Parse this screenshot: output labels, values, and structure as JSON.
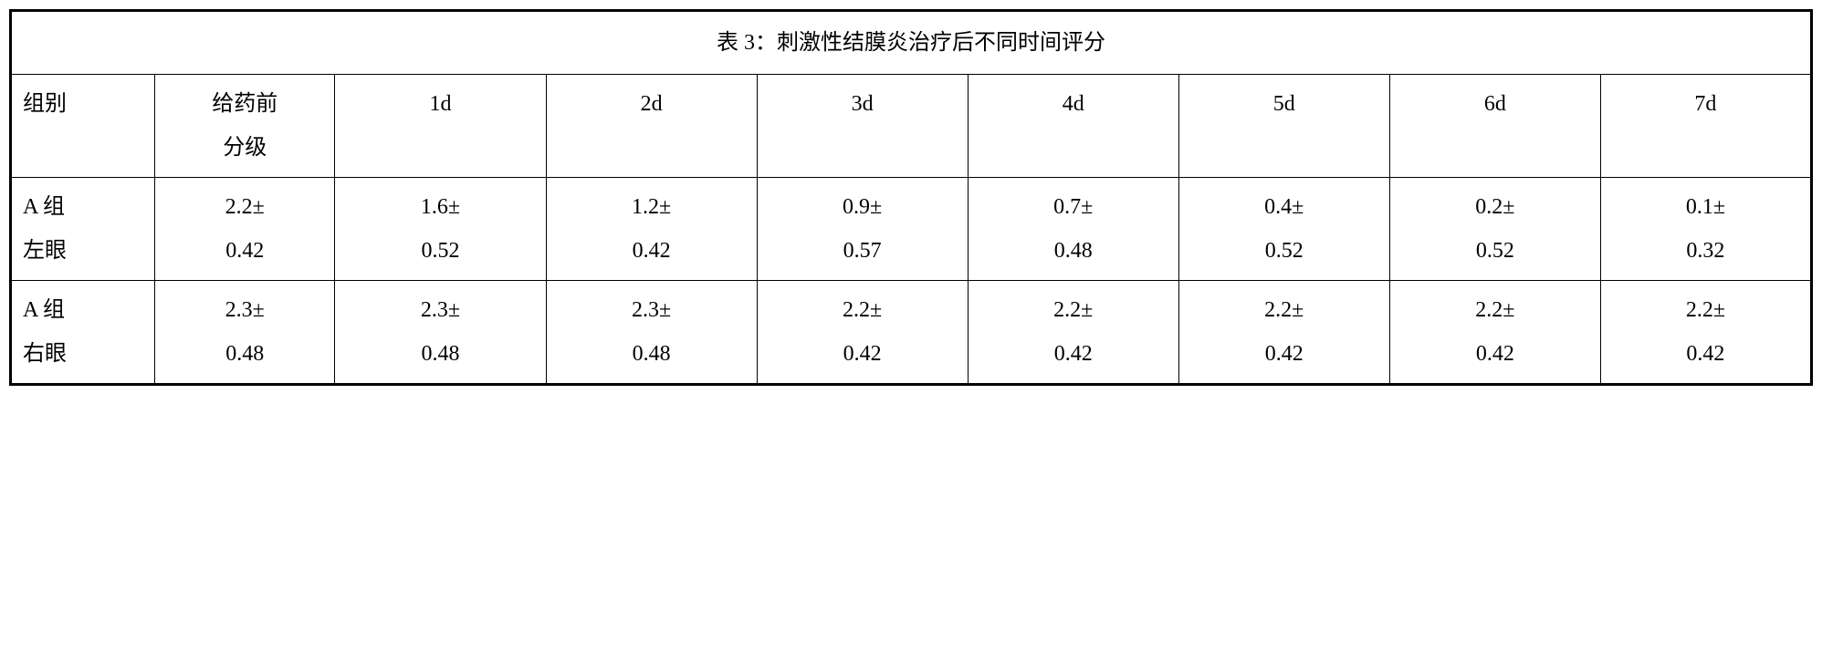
{
  "table": {
    "title": "表 3：刺激性结膜炎治疗后不同时间评分",
    "columns": {
      "group_header": "组别",
      "pre_dose_line1": "给药前",
      "pre_dose_line2": "分级",
      "d1": "1d",
      "d2": "2d",
      "d3": "3d",
      "d4": "4d",
      "d5": "5d",
      "d6": "6d",
      "d7": "7d"
    },
    "rows": [
      {
        "group_l1": "A 组",
        "group_l2": "左眼",
        "pre_l1": "2.2±",
        "pre_l2": "0.42",
        "d1_l1": "1.6±",
        "d1_l2": "0.52",
        "d2_l1": "1.2±",
        "d2_l2": "0.42",
        "d3_l1": "0.9±",
        "d3_l2": "0.57",
        "d4_l1": "0.7±",
        "d4_l2": "0.48",
        "d5_l1": "0.4±",
        "d5_l2": "0.52",
        "d6_l1": "0.2±",
        "d6_l2": "0.52",
        "d7_l1": "0.1±",
        "d7_l2": "0.32"
      },
      {
        "group_l1": "A 组",
        "group_l2": "右眼",
        "pre_l1": "2.3±",
        "pre_l2": "0.48",
        "d1_l1": "2.3±",
        "d1_l2": "0.48",
        "d2_l1": "2.3±",
        "d2_l2": "0.48",
        "d3_l1": "2.2±",
        "d3_l2": "0.42",
        "d4_l1": "2.2±",
        "d4_l2": "0.42",
        "d5_l1": "2.2±",
        "d5_l2": "0.42",
        "d6_l1": "2.2±",
        "d6_l2": "0.42",
        "d7_l1": "2.2±",
        "d7_l2": "0.42"
      }
    ],
    "styling": {
      "border_color": "#000000",
      "background_color": "#ffffff",
      "text_color": "#000000",
      "font_size_pt": 18,
      "outer_border_width": 3,
      "inner_border_width": 1.5,
      "font_family": "SimSun, serif",
      "column_widths_pct": [
        8,
        10,
        11.7,
        11.7,
        11.7,
        11.7,
        11.7,
        11.7,
        11.7
      ]
    }
  }
}
